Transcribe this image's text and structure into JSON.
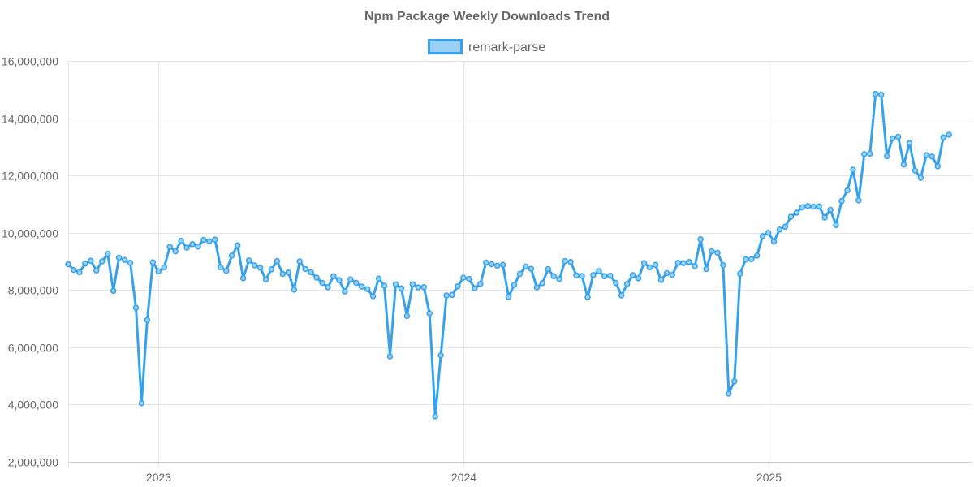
{
  "chart_data": {
    "type": "line",
    "title": "Npm Package Weekly Downloads Trend",
    "xlabel": "",
    "ylabel": "",
    "ylim": [
      2000000,
      16000000
    ],
    "yticks": [
      "2,000,000",
      "4,000,000",
      "6,000,000",
      "8,000,000",
      "10,000,000",
      "12,000,000",
      "14,000,000",
      "16,000,000"
    ],
    "ytick_values": [
      2000000,
      4000000,
      6000000,
      8000000,
      10000000,
      12000000,
      14000000,
      16000000
    ],
    "xticks": [
      "2023",
      "2024",
      "2025"
    ],
    "xtick_positions": [
      16,
      70,
      124
    ],
    "xlim": [
      0,
      160
    ],
    "grid": true,
    "legend_position": "top-center",
    "colors": {
      "line": "#36a2eb",
      "fill": "#9ad0f5",
      "title": "#666666"
    },
    "series": [
      {
        "name": "remark-parse",
        "values": [
          8900000,
          8700000,
          8620000,
          8920000,
          9020000,
          8680000,
          9000000,
          9260000,
          7970000,
          9130000,
          9050000,
          8950000,
          7380000,
          4050000,
          6950000,
          8970000,
          8650000,
          8790000,
          9510000,
          9350000,
          9720000,
          9480000,
          9600000,
          9520000,
          9750000,
          9700000,
          9760000,
          8790000,
          8670000,
          9200000,
          9560000,
          8410000,
          9030000,
          8860000,
          8780000,
          8370000,
          8720000,
          9010000,
          8560000,
          8610000,
          8010000,
          9000000,
          8730000,
          8620000,
          8430000,
          8250000,
          8100000,
          8480000,
          8340000,
          7950000,
          8370000,
          8250000,
          8120000,
          8030000,
          7780000,
          8400000,
          8150000,
          5680000,
          8200000,
          8060000,
          7090000,
          8200000,
          8090000,
          8100000,
          7180000,
          3590000,
          5720000,
          7810000,
          7830000,
          8130000,
          8430000,
          8390000,
          8060000,
          8210000,
          8960000,
          8900000,
          8850000,
          8880000,
          7760000,
          8180000,
          8560000,
          8820000,
          8740000,
          8090000,
          8240000,
          8730000,
          8480000,
          8380000,
          9010000,
          8980000,
          8510000,
          8490000,
          7750000,
          8520000,
          8660000,
          8480000,
          8500000,
          8250000,
          7810000,
          8210000,
          8520000,
          8410000,
          8940000,
          8790000,
          8880000,
          8350000,
          8590000,
          8530000,
          8950000,
          8940000,
          8980000,
          8830000,
          9770000,
          8730000,
          9350000,
          9300000,
          8870000,
          4380000,
          4810000,
          8570000,
          9070000,
          9080000,
          9200000,
          9880000,
          10000000,
          9690000,
          10110000,
          10210000,
          10560000,
          10700000,
          10890000,
          10930000,
          10910000,
          10920000,
          10530000,
          10800000,
          10270000,
          11110000,
          11480000,
          12200000,
          11130000,
          12740000,
          12760000,
          14850000,
          14820000,
          12670000,
          13290000,
          13350000,
          12380000,
          13130000,
          12170000,
          11920000,
          12710000,
          12660000,
          12320000,
          13330000,
          13420000
        ]
      }
    ]
  }
}
